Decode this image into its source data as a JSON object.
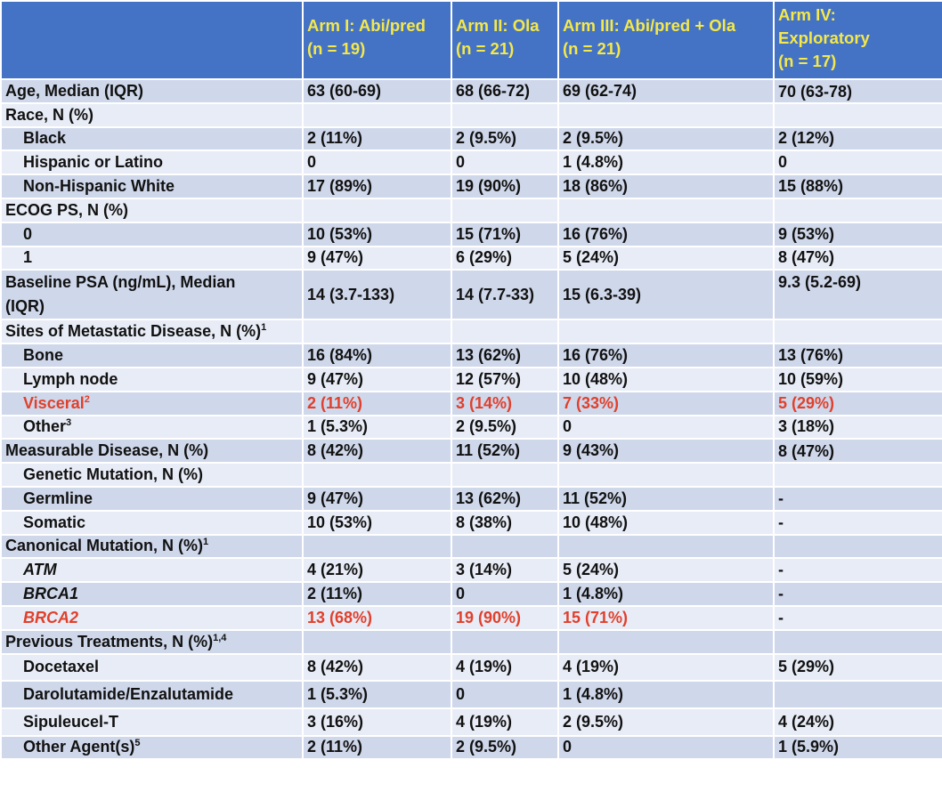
{
  "header": {
    "arms": [
      {
        "line1": "Arm I: Abi/pred",
        "line2": "(n = 19)"
      },
      {
        "line1": "Arm II: Ola",
        "line2": "(n = 21)"
      },
      {
        "line1": "Arm III: Abi/pred + Ola",
        "line2": "(n = 21)"
      },
      {
        "line1": "Arm IV:",
        "line1b": "Exploratory",
        "line2": "(n = 17)"
      }
    ]
  },
  "rows": {
    "age": {
      "label": "Age, Median (IQR)",
      "v": [
        "63 (60-69)",
        "68 (66-72)",
        "69 (62-74)",
        "70 (63-78)"
      ]
    },
    "race": {
      "label": "Race, N (%)"
    },
    "black": {
      "label": "Black",
      "v": [
        "2 (11%)",
        "2 (9.5%)",
        "2 (9.5%)",
        "2 (12%)"
      ]
    },
    "hispanic": {
      "label": "Hispanic or Latino",
      "v": [
        "0",
        "0",
        "1 (4.8%)",
        "0"
      ]
    },
    "nhw": {
      "label": "Non-Hispanic White",
      "v": [
        "17 (89%)",
        "19 (90%)",
        "18 (86%)",
        "15 (88%)"
      ]
    },
    "ecog": {
      "label": "ECOG PS, N (%)"
    },
    "ecog0": {
      "label": "0",
      "v": [
        "10 (53%)",
        "15 (71%)",
        "16 (76%)",
        "9 (53%)"
      ]
    },
    "ecog1": {
      "label": "1",
      "v": [
        "9 (47%)",
        "6 (29%)",
        "5 (24%)",
        "8 (47%)"
      ]
    },
    "psa": {
      "label_line1": "Baseline PSA (ng/mL), Median",
      "label_line2": "(IQR)",
      "v": [
        "14 (3.7-133)",
        "14 (7.7-33)",
        "15 (6.3-39)",
        "9.3 (5.2-69)"
      ]
    },
    "sites": {
      "label": "Sites of Metastatic Disease, N (%)",
      "sup": "1"
    },
    "bone": {
      "label": "Bone",
      "v": [
        "16 (84%)",
        "13 (62%)",
        "16 (76%)",
        "13 (76%)"
      ]
    },
    "lymph": {
      "label": "Lymph node",
      "v": [
        "9 (47%)",
        "12 (57%)",
        "10 (48%)",
        "10 (59%)"
      ]
    },
    "visceral": {
      "label": "Visceral",
      "sup": "2",
      "v": [
        "2 (11%)",
        "3 (14%)",
        "7 (33%)",
        "5 (29%)"
      ]
    },
    "other": {
      "label": "Other",
      "sup": "3",
      "v": [
        "1 (5.3%)",
        "2 (9.5%)",
        "0",
        "3 (18%)"
      ]
    },
    "measurable": {
      "label": "Measurable Disease, N (%)",
      "v": [
        "8 (42%)",
        "11 (52%)",
        "9 (43%)",
        "8 (47%)"
      ]
    },
    "genetic": {
      "label": "Genetic Mutation, N (%)"
    },
    "germline": {
      "label": "Germline",
      "v": [
        "9 (47%)",
        "13 (62%)",
        "11 (52%)",
        "-"
      ]
    },
    "somatic": {
      "label": "Somatic",
      "v": [
        "10 (53%)",
        "8 (38%)",
        "10 (48%)",
        "-"
      ]
    },
    "canonical": {
      "label": "Canonical Mutation, N (%)",
      "sup": "1"
    },
    "atm": {
      "label": "ATM",
      "v": [
        "4 (21%)",
        "3 (14%)",
        "5 (24%)",
        "-"
      ]
    },
    "brca1": {
      "label": "BRCA1",
      "v": [
        "2 (11%)",
        "0",
        "1 (4.8%)",
        "-"
      ]
    },
    "brca2": {
      "label": "BRCA2",
      "v": [
        "13 (68%)",
        "19 (90%)",
        "15 (71%)",
        "-"
      ]
    },
    "prev": {
      "label": "Previous Treatments, N (%)",
      "sup": "1,4"
    },
    "docetaxel": {
      "label": "Docetaxel",
      "v": [
        "8 (42%)",
        "4 (19%)",
        "4 (19%)",
        "5 (29%)"
      ]
    },
    "daro": {
      "label": "Darolutamide/Enzalutamide",
      "v": [
        "1 (5.3%)",
        "0",
        "1 (4.8%)",
        ""
      ]
    },
    "sipu": {
      "label": "Sipuleucel-T",
      "v": [
        "3 (16%)",
        "4 (19%)",
        "2 (9.5%)",
        "4 (24%)"
      ]
    },
    "otheragent": {
      "label": "Other Agent(s)",
      "sup": "5",
      "v": [
        "2 (11%)",
        "2 (9.5%)",
        "0",
        "1 (5.9%)"
      ]
    }
  },
  "colors": {
    "header_bg": "#4473c5",
    "header_text": "#f5e84a",
    "band_dark": "#cfd7ea",
    "band_light": "#e8ecf6",
    "highlight_red": "#e0402c"
  }
}
